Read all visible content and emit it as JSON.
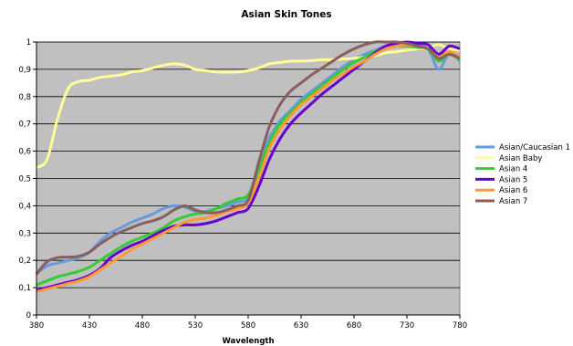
{
  "chart_data": {
    "type": "line",
    "title": "Asian Skin Tones",
    "xlabel": "Wavelength",
    "ylabel": "",
    "xlim": [
      380,
      780
    ],
    "ylim": [
      0,
      1
    ],
    "x_ticks": [
      380,
      430,
      480,
      530,
      580,
      630,
      680,
      730,
      780
    ],
    "y_ticks": [
      "0",
      "0,1",
      "0,2",
      "0,3",
      "0,4",
      "0,5",
      "0,6",
      "0,7",
      "0,8",
      "0,9",
      "1"
    ],
    "y_tick_values": [
      0,
      0.1,
      0.2,
      0.3,
      0.4,
      0.5,
      0.6,
      0.7,
      0.8,
      0.9,
      1.0
    ],
    "grid": "horizontal",
    "plot_background": "#c0c0c0",
    "legend_position": "right",
    "x": [
      380,
      390,
      400,
      410,
      420,
      430,
      440,
      450,
      460,
      470,
      480,
      490,
      500,
      510,
      520,
      530,
      540,
      550,
      560,
      570,
      580,
      590,
      600,
      610,
      620,
      630,
      640,
      650,
      660,
      670,
      680,
      690,
      700,
      710,
      720,
      730,
      740,
      750,
      760,
      770,
      780
    ],
    "series": [
      {
        "name": "Asian/Caucasian 1",
        "color": "#6699dd",
        "values": [
          0.15,
          0.18,
          0.19,
          0.2,
          0.21,
          0.23,
          0.27,
          0.3,
          0.32,
          0.34,
          0.355,
          0.37,
          0.39,
          0.4,
          0.395,
          0.38,
          0.38,
          0.39,
          0.4,
          0.415,
          0.43,
          0.55,
          0.65,
          0.71,
          0.75,
          0.79,
          0.82,
          0.85,
          0.88,
          0.91,
          0.935,
          0.955,
          0.97,
          0.985,
          0.99,
          0.99,
          0.985,
          0.975,
          0.9,
          0.96,
          0.93
        ]
      },
      {
        "name": "Asian Baby",
        "color": "#ffff99",
        "values": [
          0.54,
          0.57,
          0.72,
          0.83,
          0.855,
          0.86,
          0.87,
          0.875,
          0.88,
          0.89,
          0.895,
          0.905,
          0.915,
          0.92,
          0.915,
          0.9,
          0.895,
          0.89,
          0.89,
          0.89,
          0.895,
          0.905,
          0.92,
          0.925,
          0.93,
          0.93,
          0.932,
          0.935,
          0.935,
          0.938,
          0.94,
          0.945,
          0.95,
          0.96,
          0.965,
          0.97,
          0.975,
          0.98,
          0.99,
          0.975,
          0.97
        ]
      },
      {
        "name": "Asian 4",
        "color": "#33cc33",
        "values": [
          0.11,
          0.125,
          0.14,
          0.15,
          0.16,
          0.175,
          0.2,
          0.225,
          0.25,
          0.27,
          0.285,
          0.3,
          0.32,
          0.345,
          0.36,
          0.37,
          0.375,
          0.39,
          0.41,
          0.425,
          0.44,
          0.53,
          0.63,
          0.7,
          0.74,
          0.78,
          0.81,
          0.84,
          0.87,
          0.9,
          0.925,
          0.945,
          0.965,
          0.98,
          0.985,
          0.985,
          0.98,
          0.975,
          0.93,
          0.955,
          0.935
        ]
      },
      {
        "name": "Asian 5",
        "color": "#6600cc",
        "values": [
          0.09,
          0.1,
          0.11,
          0.12,
          0.13,
          0.145,
          0.17,
          0.21,
          0.235,
          0.255,
          0.27,
          0.29,
          0.31,
          0.325,
          0.33,
          0.33,
          0.335,
          0.345,
          0.36,
          0.375,
          0.39,
          0.47,
          0.57,
          0.645,
          0.7,
          0.74,
          0.775,
          0.81,
          0.84,
          0.87,
          0.9,
          0.93,
          0.96,
          0.985,
          0.995,
          1.0,
          0.995,
          0.99,
          0.955,
          0.985,
          0.975
        ]
      },
      {
        "name": "Asian 6",
        "color": "#ff9933",
        "values": [
          0.085,
          0.095,
          0.105,
          0.115,
          0.125,
          0.14,
          0.165,
          0.19,
          0.215,
          0.24,
          0.26,
          0.28,
          0.3,
          0.32,
          0.34,
          0.35,
          0.355,
          0.365,
          0.38,
          0.39,
          0.41,
          0.5,
          0.61,
          0.68,
          0.73,
          0.77,
          0.8,
          0.83,
          0.86,
          0.885,
          0.91,
          0.93,
          0.955,
          0.975,
          0.985,
          0.99,
          0.985,
          0.975,
          0.945,
          0.965,
          0.945
        ]
      },
      {
        "name": "Asian 7",
        "color": "#8b5e5e",
        "values": [
          0.15,
          0.195,
          0.21,
          0.212,
          0.215,
          0.23,
          0.26,
          0.285,
          0.305,
          0.32,
          0.335,
          0.345,
          0.36,
          0.385,
          0.4,
          0.385,
          0.375,
          0.375,
          0.385,
          0.4,
          0.42,
          0.56,
          0.69,
          0.77,
          0.82,
          0.85,
          0.88,
          0.905,
          0.93,
          0.955,
          0.975,
          0.99,
          1.0,
          1.0,
          1.0,
          0.995,
          0.985,
          0.975,
          0.94,
          0.955,
          0.94
        ]
      }
    ]
  }
}
